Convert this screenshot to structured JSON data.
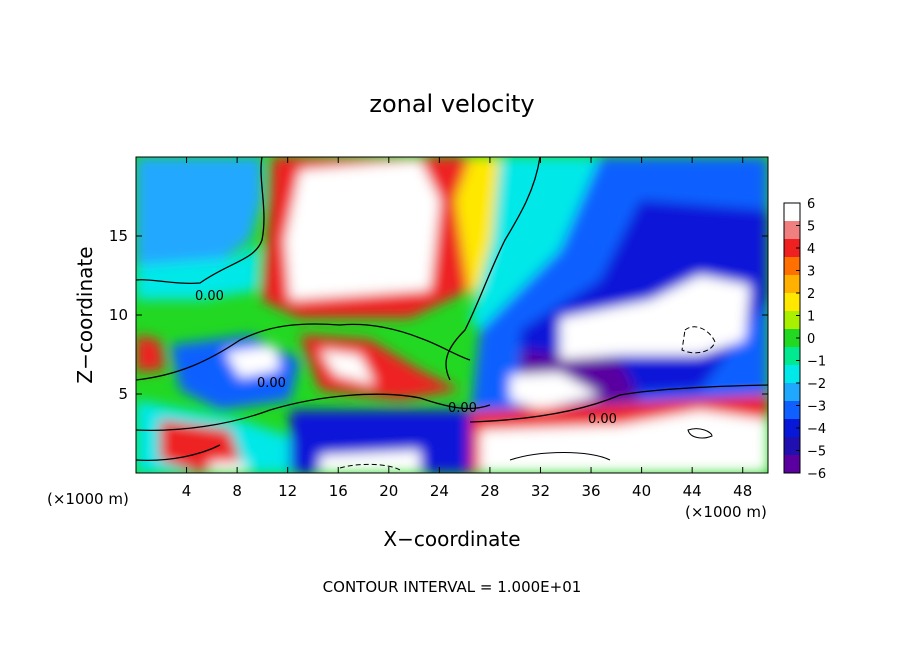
{
  "chart_data": {
    "type": "heatmap",
    "title": "zonal velocity",
    "xlabel": "X−coordinate",
    "ylabel": "Z−coordinate",
    "x_unit_left": "(×1000 m)",
    "x_unit_right": "(×1000 m)",
    "xlim": [
      0,
      50
    ],
    "ylim": [
      0,
      20
    ],
    "x_ticks": [
      4,
      8,
      12,
      16,
      20,
      24,
      28,
      32,
      36,
      40,
      44,
      48
    ],
    "y_ticks": [
      5,
      10,
      15
    ],
    "colorbar": {
      "ticks": [
        "6",
        "5",
        "4",
        "3",
        "2",
        "1",
        "0",
        "−1",
        "−2",
        "−3",
        "−4",
        "−5",
        "−6"
      ],
      "range": [
        -6,
        6
      ],
      "colors": [
        "#ffffff",
        "#f08080",
        "#ee2020",
        "#ff7000",
        "#ffb000",
        "#ffe800",
        "#a8f000",
        "#22d822",
        "#00e890",
        "#00e8e8",
        "#20a8ff",
        "#1060ff",
        "#0818d8",
        "#2010b0",
        "#5a00a0"
      ]
    },
    "contour_labels": [
      "0.00",
      "0.00",
      "0.00",
      "0.00"
    ],
    "footnote": "CONTOUR INTERVAL = 1.000E+01"
  }
}
